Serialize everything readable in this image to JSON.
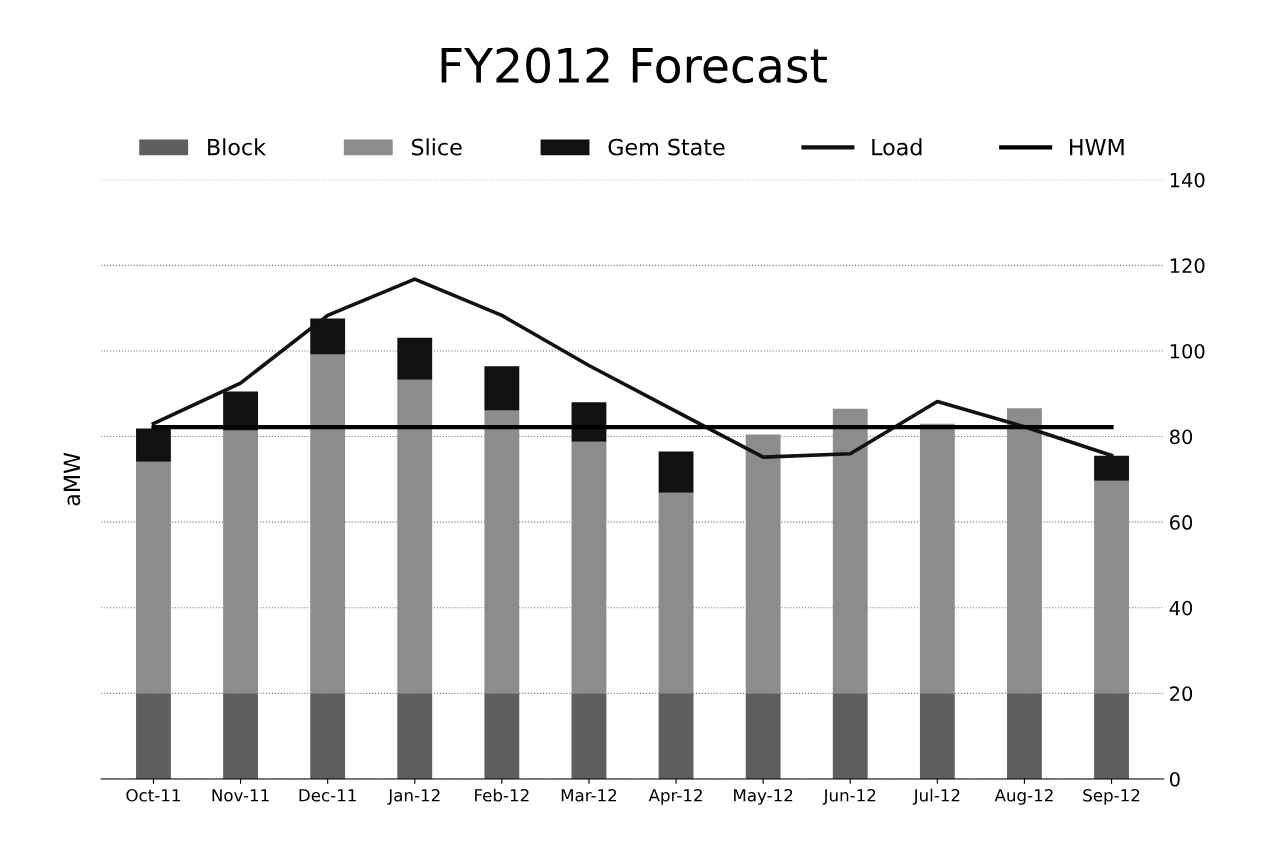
{
  "chart_data": {
    "type": "bar",
    "title": "FY2012 Forecast",
    "ylabel": "aMW",
    "stacked": true,
    "categories": [
      "Oct-11",
      "Nov-11",
      "Dec-11",
      "Jan-12",
      "Feb-12",
      "Mar-12",
      "Apr-12",
      "May-12",
      "Jun-12",
      "Jul-12",
      "Aug-12",
      "Sep-12"
    ],
    "series": [
      {
        "name": "Block",
        "color": "#5e5e5e",
        "values": [
          20,
          20,
          20,
          20,
          20,
          20,
          20,
          20,
          20,
          20,
          20,
          20
        ]
      },
      {
        "name": "Slice",
        "color": "#8c8c8c",
        "values": [
          54.1,
          61.4,
          79.2,
          73.3,
          66.1,
          58.8,
          46.9,
          60.5,
          66.5,
          63.0,
          66.6,
          49.7
        ]
      },
      {
        "name": "Gem State",
        "color": "#111111",
        "values": [
          7.8,
          9.1,
          8.4,
          9.8,
          10.3,
          9.2,
          9.6,
          0,
          0,
          0,
          0,
          5.8
        ]
      },
      {
        "name": "Load",
        "type": "line",
        "color": "#111111",
        "values": [
          83.0,
          92.5,
          108.3,
          116.8,
          108.3,
          96.6,
          85.9,
          75.2,
          76.0,
          88.2,
          82.3,
          75.6
        ]
      },
      {
        "name": "HWM",
        "type": "line",
        "color": "#000000",
        "values": [
          82.2,
          82.2,
          82.2,
          82.2,
          82.2,
          82.2,
          82.2,
          82.2,
          82.2,
          82.2,
          82.2,
          82.2
        ]
      }
    ],
    "ylim": [
      0,
      140
    ],
    "yticks": [
      0,
      20,
      40,
      60,
      80,
      100,
      120,
      140
    ],
    "grid": "y",
    "legend": "top",
    "marker": "none",
    "line_style": "solid"
  }
}
